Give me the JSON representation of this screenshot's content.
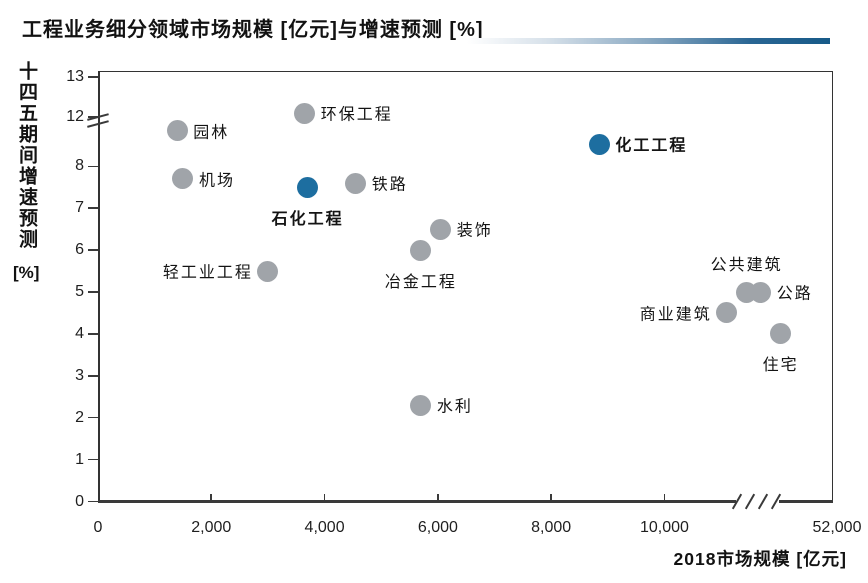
{
  "title": "工程业务细分领域市场规模 [亿元]与增速预测 [%]",
  "colors": {
    "accent_blue": "#1d6ea0",
    "point_gray": "#a0a4a9",
    "axis": "#3a3a3a",
    "text": "#141414",
    "accent_bar_gradient_end": "#175a88"
  },
  "chart_data": {
    "type": "scatter",
    "title": "工程业务细分领域市场规模 [亿元]与增速预测 [%]",
    "xlabel": "2018市场规模 [亿元]",
    "ylabel": "十四五期间增速预测",
    "ylabel_unit": "[%]",
    "grid": false,
    "legend": false,
    "x_ticks": [
      0,
      2000,
      4000,
      6000,
      8000,
      10000
    ],
    "x_axis_end": {
      "value": 52000,
      "label": "52,000"
    },
    "x_axis_break": {
      "after": 10000,
      "resume": 52000,
      "marks": 4
    },
    "y_ticks": [
      0,
      1,
      2,
      3,
      4,
      5,
      6,
      7,
      8,
      12,
      13
    ],
    "y_axis_break": {
      "after": 8,
      "resume": 12,
      "marks": 2
    },
    "note": "values inside axis-break zones are positional estimates",
    "points": [
      {
        "name": "园林",
        "x": 1400,
        "y": 10.9,
        "highlighted": false,
        "label_pos": "right"
      },
      {
        "name": "环保工程",
        "x": 3650,
        "y": 12.1,
        "highlighted": false,
        "label_pos": "right"
      },
      {
        "name": "机场",
        "x": 1500,
        "y": 7.7,
        "highlighted": false,
        "label_pos": "right"
      },
      {
        "name": "石化工程",
        "x": 3700,
        "y": 7.5,
        "highlighted": true,
        "label_pos": "below"
      },
      {
        "name": "铁路",
        "x": 4550,
        "y": 7.6,
        "highlighted": false,
        "label_pos": "right"
      },
      {
        "name": "装饰",
        "x": 6050,
        "y": 6.5,
        "highlighted": false,
        "label_pos": "right"
      },
      {
        "name": "冶金工程",
        "x": 5700,
        "y": 6.0,
        "highlighted": false,
        "label_pos": "below"
      },
      {
        "name": "轻工业工程",
        "x": 3000,
        "y": 5.5,
        "highlighted": false,
        "label_pos": "left"
      },
      {
        "name": "化工工程",
        "x": 8850,
        "y": 9.8,
        "highlighted": true,
        "label_pos": "right"
      },
      {
        "name": "公共建筑",
        "x": 11450,
        "y": 5.0,
        "highlighted": false,
        "label_pos": "above"
      },
      {
        "name": "公路",
        "x": 11700,
        "y": 5.0,
        "highlighted": false,
        "label_pos": "right"
      },
      {
        "name": "商业建筑",
        "x": 11100,
        "y": 4.5,
        "highlighted": false,
        "label_pos": "left"
      },
      {
        "name": "住宅",
        "x": 12050,
        "y": 4.0,
        "highlighted": false,
        "label_pos": "below"
      },
      {
        "name": "水利",
        "x": 5700,
        "y": 2.3,
        "highlighted": false,
        "label_pos": "right"
      }
    ]
  }
}
